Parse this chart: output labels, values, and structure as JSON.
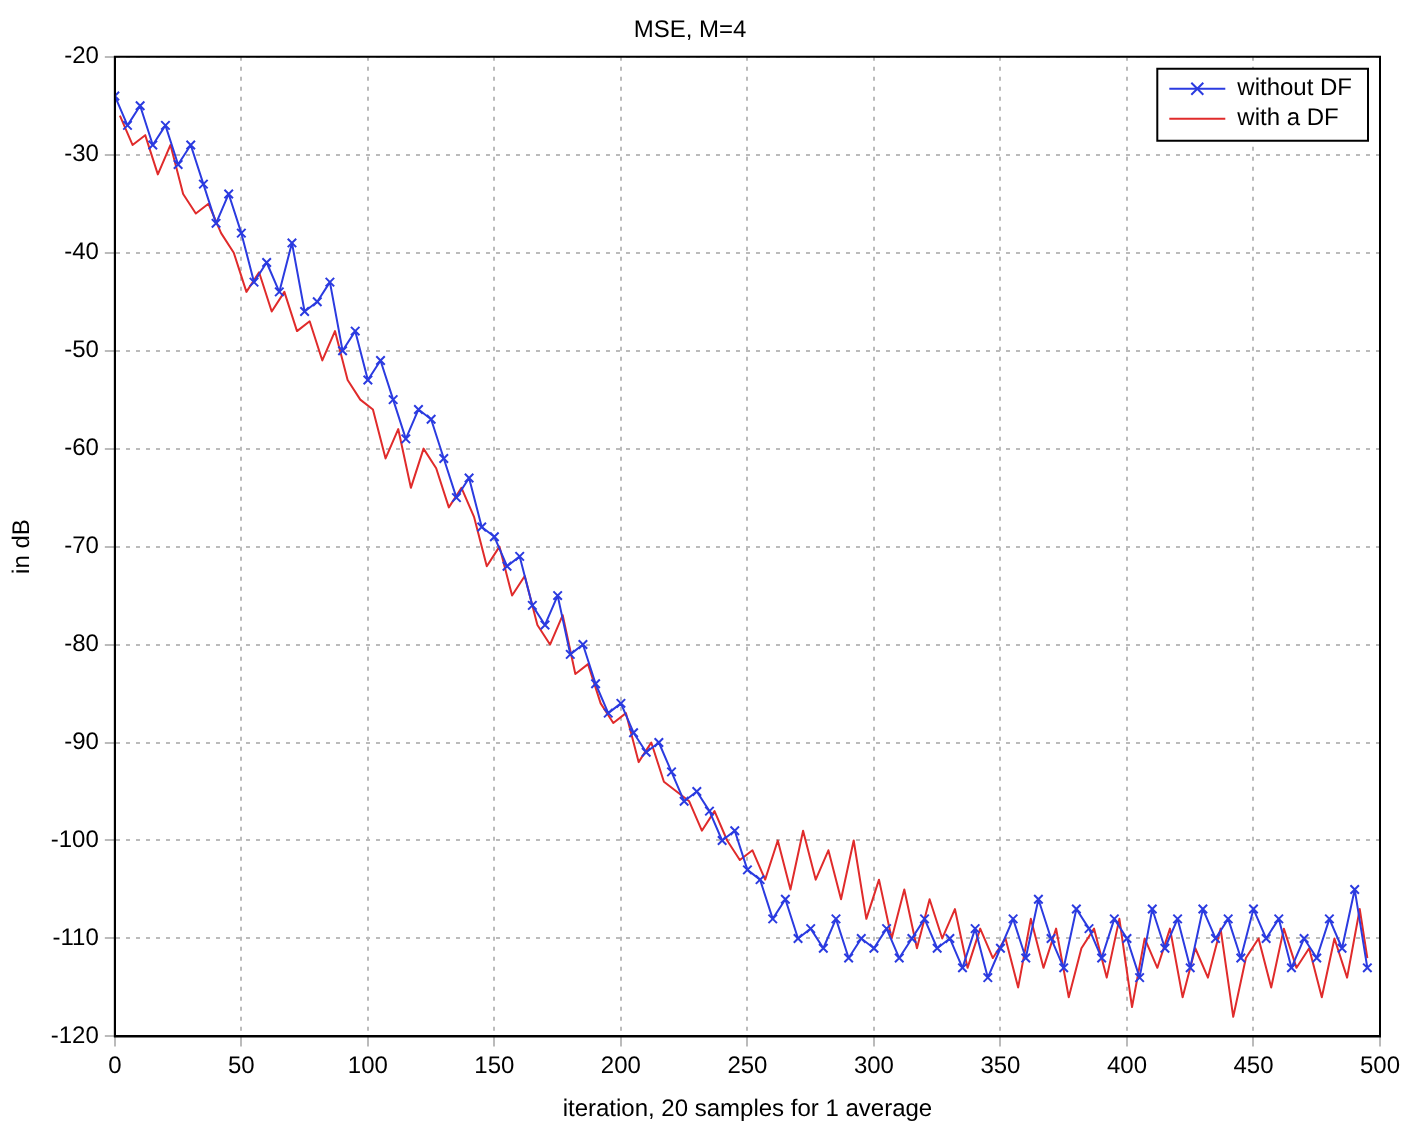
{
  "chart_data": {
    "type": "line",
    "title": "MSE, M=4",
    "xlabel": "iteration, 20 samples for 1 average",
    "ylabel": "in dB",
    "xlim": [
      0,
      500
    ],
    "xticks": [
      0,
      50,
      100,
      150,
      200,
      250,
      300,
      350,
      400,
      450,
      500
    ],
    "ylim": [
      -120,
      -20
    ],
    "yticks": [
      -120,
      -110,
      -100,
      -90,
      -80,
      -70,
      -60,
      -50,
      -40,
      -30,
      -20
    ],
    "grid": true,
    "legend": "top right",
    "line_style": "solid",
    "series": [
      {
        "name": "without DF",
        "color": "#2b3be0",
        "marker": "cross",
        "x": [
          0,
          5,
          10,
          15,
          20,
          25,
          30,
          35,
          40,
          45,
          50,
          55,
          60,
          65,
          70,
          75,
          80,
          85,
          90,
          95,
          100,
          105,
          110,
          115,
          120,
          125,
          130,
          135,
          140,
          145,
          150,
          155,
          160,
          165,
          170,
          175,
          180,
          185,
          190,
          195,
          200,
          205,
          210,
          215,
          220,
          225,
          230,
          235,
          240,
          245,
          250,
          255,
          260,
          265,
          270,
          275,
          280,
          285,
          290,
          295,
          300,
          305,
          310,
          315,
          320,
          325,
          330,
          335,
          340,
          345,
          350,
          355,
          360,
          365,
          370,
          375,
          380,
          385,
          390,
          395,
          400,
          405,
          410,
          415,
          420,
          425,
          430,
          435,
          440,
          445,
          450,
          455,
          460,
          465,
          470,
          475,
          480,
          485,
          490,
          495
        ],
        "values": [
          -24,
          -27,
          -25,
          -29,
          -27,
          -31,
          -29,
          -33,
          -37,
          -34,
          -38,
          -43,
          -41,
          -44,
          -39,
          -46,
          -45,
          -43,
          -50,
          -48,
          -53,
          -51,
          -55,
          -59,
          -56,
          -57,
          -61,
          -65,
          -63,
          -68,
          -69,
          -72,
          -71,
          -76,
          -78,
          -75,
          -81,
          -80,
          -84,
          -87,
          -86,
          -89,
          -91,
          -90,
          -93,
          -96,
          -95,
          -97,
          -100,
          -99,
          -103,
          -104,
          -108,
          -106,
          -110,
          -109,
          -111,
          -108,
          -112,
          -110,
          -111,
          -109,
          -112,
          -110,
          -108,
          -111,
          -110,
          -113,
          -109,
          -114,
          -111,
          -108,
          -112,
          -106,
          -110,
          -113,
          -107,
          -109,
          -112,
          -108,
          -110,
          -114,
          -107,
          -111,
          -108,
          -113,
          -107,
          -110,
          -108,
          -112,
          -107,
          -110,
          -108,
          -113,
          -110,
          -112,
          -108,
          -111,
          -105,
          -113
        ]
      },
      {
        "name": "with a DF",
        "color": "#e02b2b",
        "marker": "none",
        "x": [
          2,
          7,
          12,
          17,
          22,
          27,
          32,
          37,
          42,
          47,
          52,
          57,
          62,
          67,
          72,
          77,
          82,
          87,
          92,
          97,
          102,
          107,
          112,
          117,
          122,
          127,
          132,
          137,
          142,
          147,
          152,
          157,
          162,
          167,
          172,
          177,
          182,
          187,
          192,
          197,
          202,
          207,
          212,
          217,
          222,
          227,
          232,
          237,
          242,
          247,
          252,
          257,
          262,
          267,
          272,
          277,
          282,
          287,
          292,
          297,
          302,
          307,
          312,
          317,
          322,
          327,
          332,
          337,
          342,
          347,
          352,
          357,
          362,
          367,
          372,
          377,
          382,
          387,
          392,
          397,
          402,
          407,
          412,
          417,
          422,
          427,
          432,
          437,
          442,
          447,
          452,
          457,
          462,
          467,
          472,
          477,
          482,
          487,
          492,
          495
        ],
        "values": [
          -26,
          -29,
          -28,
          -32,
          -29,
          -34,
          -36,
          -35,
          -38,
          -40,
          -44,
          -42,
          -46,
          -44,
          -48,
          -47,
          -51,
          -48,
          -53,
          -55,
          -56,
          -61,
          -58,
          -64,
          -60,
          -62,
          -66,
          -64,
          -67,
          -72,
          -70,
          -75,
          -73,
          -78,
          -80,
          -77,
          -83,
          -82,
          -86,
          -88,
          -87,
          -92,
          -90,
          -94,
          -95,
          -96,
          -99,
          -97,
          -100,
          -102,
          -101,
          -104,
          -100,
          -105,
          -99,
          -104,
          -101,
          -106,
          -100,
          -108,
          -104,
          -110,
          -105,
          -111,
          -106,
          -110,
          -107,
          -113,
          -109,
          -112,
          -110,
          -115,
          -108,
          -113,
          -109,
          -116,
          -111,
          -109,
          -114,
          -108,
          -117,
          -110,
          -113,
          -109,
          -116,
          -111,
          -114,
          -109,
          -118,
          -112,
          -110,
          -115,
          -109,
          -113,
          -111,
          -116,
          -110,
          -114,
          -107,
          -112
        ]
      }
    ]
  }
}
